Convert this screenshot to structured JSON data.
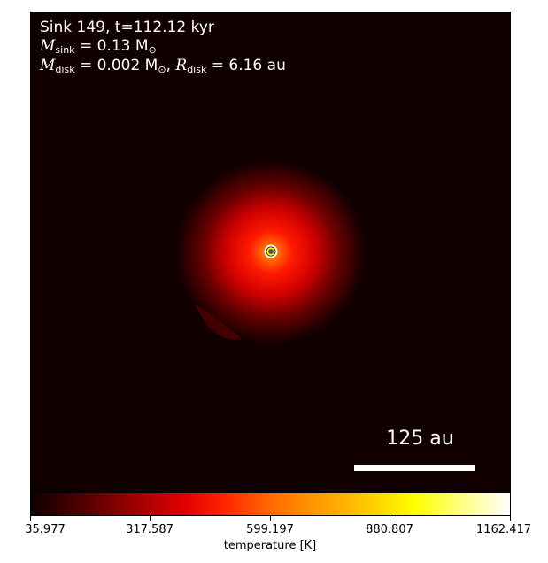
{
  "annotation": {
    "line1": "Sink 149, t=112.12 kyr",
    "msink_symbol": "M",
    "msink_sub": "sink",
    "msink_value": " = 0.13 M",
    "msink_unit_sub": "⊙",
    "mdisk_symbol": "M",
    "mdisk_sub": "disk",
    "mdisk_value": " = 0.002 M",
    "mdisk_unit_sub": "⊙",
    "rdisk_sep": ", ",
    "rdisk_symbol": "R",
    "rdisk_sub": "disk",
    "rdisk_value": " = 6.16 au"
  },
  "scale": {
    "label": "125 au"
  },
  "colorbar": {
    "ticks": [
      "35.977",
      "317.587",
      "599.197",
      "880.807",
      "1162.417"
    ],
    "label": "temperature [K]",
    "min": 35.977,
    "max": 1162.417
  },
  "colors": {
    "background": "#100000",
    "core": "#ffff00",
    "sink_marker": "#ffffff"
  }
}
